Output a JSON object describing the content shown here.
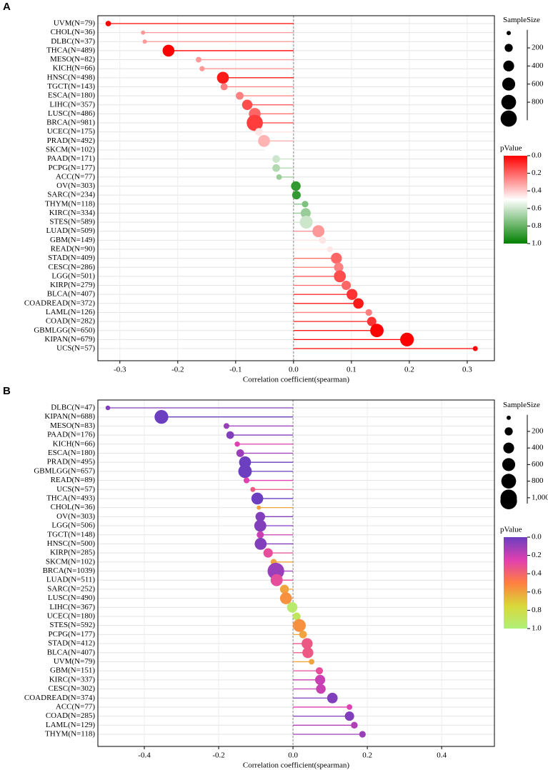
{
  "chart_data": [
    {
      "type": "lollipop",
      "panel_label": "A",
      "xlabel": "Correlation coefficient(spearman)",
      "categories": [
        "UVM(N=79)",
        "CHOL(N=36)",
        "DLBC(N=37)",
        "THCA(N=489)",
        "MESO(N=82)",
        "KICH(N=66)",
        "HNSC(N=498)",
        "TGCT(N=143)",
        "ESCA(N=180)",
        "LIHC(N=357)",
        "LUSC(N=486)",
        "BRCA(N=981)",
        "UCEC(N=175)",
        "PRAD(N=492)",
        "SKCM(N=102)",
        "PAAD(N=171)",
        "PCPG(N=177)",
        "ACC(N=77)",
        "OV(N=303)",
        "SARC(N=234)",
        "THYM(N=118)",
        "KIRC(N=334)",
        "STES(N=589)",
        "LUAD(N=509)",
        "GBM(N=149)",
        "READ(N=90)",
        "STAD(N=409)",
        "CESC(N=286)",
        "LGG(N=501)",
        "KIRP(N=279)",
        "BLCA(N=407)",
        "COADREAD(N=372)",
        "LAML(N=126)",
        "COAD(N=282)",
        "GBMLGG(N=650)",
        "KIPAN(N=679)",
        "UCS(N=57)"
      ],
      "values": [
        -0.32,
        -0.26,
        -0.257,
        -0.216,
        -0.164,
        -0.158,
        -0.122,
        -0.12,
        -0.093,
        -0.08,
        -0.067,
        -0.067,
        -0.06,
        -0.051,
        -0.044,
        -0.03,
        -0.03,
        -0.025,
        0.004,
        0.005,
        0.02,
        0.021,
        0.022,
        0.043,
        0.05,
        0.063,
        0.074,
        0.078,
        0.08,
        0.091,
        0.101,
        0.112,
        0.13,
        0.135,
        0.144,
        0.196,
        0.314
      ],
      "sizes": [
        79,
        36,
        37,
        489,
        82,
        66,
        498,
        143,
        180,
        357,
        486,
        981,
        175,
        492,
        102,
        171,
        177,
        77,
        303,
        234,
        118,
        334,
        589,
        509,
        149,
        90,
        409,
        286,
        501,
        279,
        407,
        372,
        126,
        282,
        650,
        679,
        57
      ],
      "pvalues": [
        0,
        0.3,
        0.3,
        0,
        0.3,
        0.3,
        0.05,
        0.25,
        0.25,
        0.15,
        0.2,
        0.12,
        0.45,
        0.35,
        0.5,
        0.6,
        0.65,
        0.7,
        0.9,
        0.9,
        0.75,
        0.7,
        0.6,
        0.3,
        0.45,
        0.45,
        0.2,
        0.25,
        0.15,
        0.2,
        0.1,
        0.05,
        0.25,
        0.1,
        0,
        0,
        0
      ],
      "xlim": [
        -0.338,
        0.347
      ],
      "xticks": [
        -0.3,
        -0.2,
        -0.1,
        {
          "value": 0,
          "label": "0.0"
        },
        0.1,
        0.2,
        0.3
      ],
      "grid": true,
      "size_legend_title": "SampleSize",
      "sizelim": [
        0,
        1000
      ],
      "size_ticks": [
        200,
        400,
        600,
        800
      ],
      "color_legend_title": "pValue",
      "clim": [
        0,
        1
      ],
      "colorscale": [
        "#ff0000",
        "#ffffff",
        "#008000"
      ],
      "color_ticks": [
        {
          "value": 0,
          "label": "0.0"
        },
        0.2,
        0.4,
        0.6,
        0.8,
        {
          "value": 1,
          "label": "1.0"
        }
      ]
    },
    {
      "type": "lollipop",
      "panel_label": "B",
      "xlabel": "Correlation coefficient(spearman)",
      "categories": [
        "DLBC(N=47)",
        "KIPAN(N=688)",
        "MESO(N=83)",
        "PAAD(N=176)",
        "KICH(N=66)",
        "ESCA(N=180)",
        "PRAD(N=495)",
        "GBMLGG(N=657)",
        "READ(N=89)",
        "UCS(N=57)",
        "THCA(N=493)",
        "CHOL(N=36)",
        "OV(N=303)",
        "LGG(N=506)",
        "TGCT(N=148)",
        "HNSC(N=500)",
        "KIRP(N=285)",
        "SKCM(N=102)",
        "BRCA(N=1039)",
        "LUAD(N=511)",
        "SARC(N=252)",
        "LUSC(N=490)",
        "LIHC(N=367)",
        "UCEC(N=180)",
        "STES(N=592)",
        "PCPG(N=177)",
        "STAD(N=412)",
        "BLCA(N=407)",
        "UVM(N=79)",
        "GBM(N=151)",
        "KIRC(N=337)",
        "CESC(N=302)",
        "COADREAD(N=374)",
        "ACC(N=77)",
        "COAD(N=285)",
        "LAML(N=129)",
        "THYM(N=118)"
      ],
      "values": [
        -0.498,
        -0.354,
        -0.179,
        -0.169,
        -0.15,
        -0.142,
        -0.129,
        -0.129,
        -0.125,
        -0.108,
        -0.096,
        -0.092,
        -0.088,
        -0.088,
        -0.088,
        -0.087,
        -0.067,
        -0.052,
        -0.046,
        -0.044,
        -0.023,
        -0.019,
        -0.002,
        0.01,
        0.017,
        0.027,
        0.038,
        0.04,
        0.05,
        0.071,
        0.073,
        0.075,
        0.106,
        0.152,
        0.152,
        0.165,
        0.187
      ],
      "sizes": [
        47,
        688,
        83,
        176,
        66,
        180,
        495,
        657,
        89,
        57,
        493,
        36,
        303,
        506,
        148,
        500,
        285,
        102,
        1039,
        511,
        252,
        490,
        367,
        180,
        592,
        177,
        412,
        407,
        79,
        151,
        337,
        302,
        374,
        77,
        285,
        129,
        118
      ],
      "pvalues": [
        0.05,
        0,
        0.1,
        0.05,
        0.25,
        0.1,
        0,
        0,
        0.25,
        0.35,
        0,
        0.6,
        0.05,
        0.05,
        0.2,
        0.05,
        0.3,
        0.6,
        0.1,
        0.3,
        0.6,
        0.55,
        0.95,
        0.9,
        0.55,
        0.6,
        0.35,
        0.35,
        0.6,
        0.3,
        0.2,
        0.2,
        0.05,
        0.25,
        0.05,
        0.15,
        0.1
      ],
      "xlim": [
        -0.525,
        0.542
      ],
      "xticks": [
        -0.4,
        -0.2,
        {
          "value": 0,
          "label": "0.0"
        },
        0.2,
        0.4
      ],
      "grid": true,
      "size_legend_title": "SampleSize",
      "sizelim": [
        0,
        1070
      ],
      "size_ticks": [
        200,
        400,
        600,
        800,
        {
          "value": 1000,
          "label": "1,000"
        }
      ],
      "color_legend_title": "pValue",
      "clim": [
        0,
        1
      ],
      "colorscale": [
        "#6b3fbf",
        "#e040b0",
        "#ff7f40",
        "#d9d83a",
        "#b0f07a"
      ],
      "color_ticks": [
        {
          "value": 0,
          "label": "0.0"
        },
        0.2,
        0.4,
        0.6,
        0.8,
        {
          "value": 1,
          "label": "1.0"
        }
      ]
    }
  ]
}
